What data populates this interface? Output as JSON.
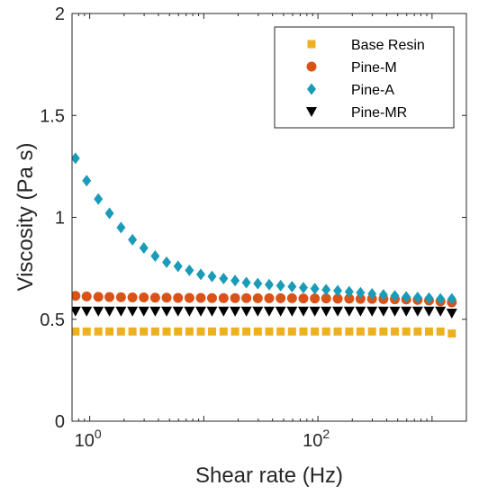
{
  "chart_data": {
    "type": "scatter",
    "xlabel": "Shear rate (Hz)",
    "ylabel": "Viscosity (Pa s)",
    "x_scale": "log",
    "xlim": [
      0.7,
      2000
    ],
    "ylim": [
      0,
      2
    ],
    "x_ticks": [
      {
        "value": 1,
        "base": "10",
        "exp": "0"
      },
      {
        "value": 100,
        "base": "10",
        "exp": "2"
      }
    ],
    "y_ticks": [
      {
        "value": 0,
        "label": "0"
      },
      {
        "value": 0.5,
        "label": "0.5"
      },
      {
        "value": 1,
        "label": "1"
      },
      {
        "value": 1.5,
        "label": "1.5"
      },
      {
        "value": 2,
        "label": "2"
      }
    ],
    "grid": false,
    "legend_position": "top-right",
    "x": [
      0.75,
      0.94,
      1.19,
      1.49,
      1.88,
      2.37,
      2.98,
      3.75,
      4.72,
      5.94,
      7.48,
      9.41,
      11.8,
      14.9,
      18.8,
      23.6,
      29.7,
      37.4,
      47.1,
      59.3,
      74.6,
      93.9,
      118,
      149,
      188,
      236,
      298,
      375,
      472,
      594,
      748,
      941,
      1185,
      1490
    ],
    "series": [
      {
        "name": "Base Resin",
        "marker": "square",
        "color": "#EDB120",
        "values": [
          0.44,
          0.44,
          0.44,
          0.44,
          0.44,
          0.44,
          0.44,
          0.44,
          0.44,
          0.44,
          0.44,
          0.44,
          0.44,
          0.44,
          0.44,
          0.44,
          0.44,
          0.44,
          0.44,
          0.44,
          0.44,
          0.44,
          0.44,
          0.44,
          0.44,
          0.44,
          0.44,
          0.44,
          0.44,
          0.44,
          0.44,
          0.44,
          0.44,
          0.43
        ]
      },
      {
        "name": "Pine-M",
        "marker": "circle",
        "color": "#D95319",
        "values": [
          0.615,
          0.612,
          0.61,
          0.609,
          0.608,
          0.607,
          0.607,
          0.606,
          0.606,
          0.605,
          0.605,
          0.605,
          0.604,
          0.604,
          0.604,
          0.604,
          0.603,
          0.603,
          0.603,
          0.603,
          0.602,
          0.602,
          0.602,
          0.601,
          0.601,
          0.6,
          0.6,
          0.599,
          0.598,
          0.597,
          0.595,
          0.592,
          0.588,
          0.583
        ]
      },
      {
        "name": "Pine-A",
        "marker": "diamond",
        "color": "#1A9BB8",
        "values": [
          1.29,
          1.18,
          1.09,
          1.02,
          0.95,
          0.89,
          0.85,
          0.81,
          0.78,
          0.76,
          0.74,
          0.72,
          0.71,
          0.7,
          0.69,
          0.68,
          0.675,
          0.67,
          0.665,
          0.66,
          0.655,
          0.65,
          0.645,
          0.64,
          0.635,
          0.63,
          0.625,
          0.62,
          0.615,
          0.61,
          0.607,
          0.604,
          0.6,
          0.6
        ]
      },
      {
        "name": "Pine-MR",
        "marker": "triangle-down",
        "color": "#000000",
        "values": [
          0.54,
          0.54,
          0.54,
          0.54,
          0.54,
          0.54,
          0.54,
          0.54,
          0.54,
          0.54,
          0.54,
          0.54,
          0.54,
          0.54,
          0.54,
          0.54,
          0.54,
          0.54,
          0.54,
          0.54,
          0.54,
          0.54,
          0.54,
          0.54,
          0.54,
          0.54,
          0.54,
          0.54,
          0.54,
          0.54,
          0.54,
          0.54,
          0.54,
          0.53
        ]
      }
    ]
  }
}
